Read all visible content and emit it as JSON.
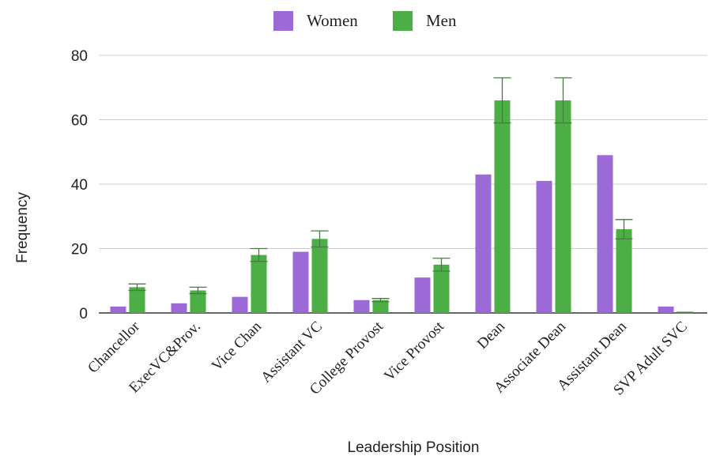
{
  "chart_data": {
    "type": "bar",
    "title": "",
    "xlabel": "Leadership Position",
    "ylabel": "Frequency",
    "ylim": [
      0,
      80
    ],
    "yticks": [
      0,
      20,
      40,
      60,
      80
    ],
    "grid": true,
    "legend": "top-center",
    "categories": [
      "Chancellor",
      "ExecVC&Prov.",
      "Vice Chan",
      "Assistant VC",
      "College Provost",
      "Vice Provost",
      "Dean",
      "Associate Dean",
      "Assistant Dean",
      "SVP Adult SVC"
    ],
    "series": [
      {
        "name": "Women",
        "color": "#9c6ad6",
        "values": [
          2,
          3,
          5,
          19,
          4,
          11,
          43,
          41,
          49,
          2
        ]
      },
      {
        "name": "Men",
        "color": "#4caf45",
        "values": [
          8,
          7,
          18,
          23,
          4,
          15,
          66,
          66,
          26,
          0
        ],
        "error": [
          1,
          1,
          2,
          2.5,
          0.5,
          2,
          7,
          7,
          3,
          0.2
        ]
      }
    ]
  }
}
